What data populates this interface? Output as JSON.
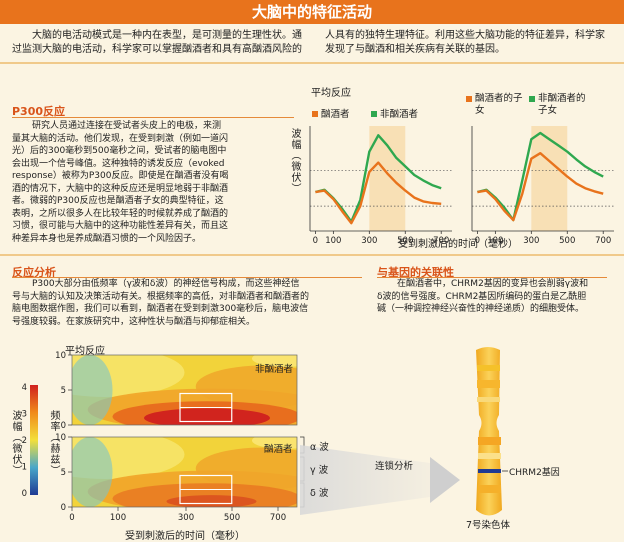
{
  "title": "大脑中的特征活动",
  "intro": {
    "left_lines": [
      "大脑的电活动模式是一种内在表型，是可测量的生理性状。通",
      "过监测大脑的电活动，科学家可以掌握酗酒者和具有高酗酒风险的"
    ],
    "right_lines": [
      "人具有的独特生理特征。利用这些大脑功能的特征差异，科学家",
      "发现了与酗酒和相关疾病有关联的基因。"
    ]
  },
  "p300": {
    "title": "P300反应",
    "lines": [
      "研究人员通过连接在受试者头皮上的电极，来测",
      "量其大脑的活动。他们发现，在受到刺激（例如一道闪",
      "光）后的300毫秒到500毫秒之间，受试者的脑电图中",
      "会出现一个信号峰值。这种独特的诱发反应（evoked",
      "response）被称为P300反应。即使是在酗酒者没有喝",
      "酒的情况下，大脑中的这种反应还是明显地弱于非酗酒",
      "者。微弱的P300反应也是酗酒者子女的典型特征，这",
      "表明，之所以很多人在比较年轻的时候就养成了酗酒的",
      "习惯，很可能与大脑中的这种功能性差异有关，而且这",
      "种差异本身也是养成酗酒习惯的一个风险因子。"
    ]
  },
  "avg_chart": {
    "title": "平均反应",
    "ylabel": "波幅（微伏）",
    "xlabel": "受到刺激后的时间（毫秒）",
    "legend_left": [
      "酗酒者",
      "非酗酒者"
    ],
    "legend_right": [
      "酗酒者的子女",
      "非酗酒者的子女"
    ],
    "colors": {
      "alcoholic": "#e8731c",
      "non_alcoholic": "#2fa84f",
      "window": "#f7d9a6"
    },
    "x_ticks": [
      "0",
      "100",
      "300",
      "500",
      "700"
    ]
  },
  "chart_data": [
    {
      "type": "line",
      "title": "平均反应",
      "xlabel": "受到刺激后的时间（毫秒）",
      "ylabel": "波幅（微伏）",
      "x": [
        0,
        50,
        100,
        150,
        200,
        250,
        300,
        350,
        400,
        450,
        500,
        550,
        600,
        650,
        700
      ],
      "xlim": [
        -30,
        760
      ],
      "series": [
        {
          "name": "非酗酒者",
          "values": [
            0,
            0.3,
            -0.8,
            -2.2,
            -3.8,
            -1.0,
            5.2,
            7.3,
            6.0,
            4.4,
            3.3,
            2.2,
            1.5,
            0.9,
            0.5
          ]
        },
        {
          "name": "酗酒者",
          "values": [
            0,
            0.2,
            -0.9,
            -2.5,
            -4.0,
            -1.8,
            2.6,
            3.8,
            2.4,
            1.2,
            0.2,
            -0.7,
            -1.2,
            -1.4,
            -1.5
          ]
        }
      ],
      "highlight_range": [
        300,
        500
      ]
    },
    {
      "type": "line",
      "xlabel": "受到刺激后的时间（毫秒）",
      "x": [
        0,
        50,
        100,
        150,
        200,
        250,
        300,
        350,
        400,
        450,
        500,
        550,
        600,
        650,
        700
      ],
      "xlim": [
        -30,
        760
      ],
      "series": [
        {
          "name": "非酗酒者的子女",
          "values": [
            0,
            0.3,
            -0.7,
            -2.0,
            -3.6,
            1.5,
            6.8,
            7.6,
            6.8,
            6.0,
            5.2,
            4.2,
            3.3,
            2.6,
            2.0
          ]
        },
        {
          "name": "酗酒者的子女",
          "values": [
            0,
            0.2,
            -0.9,
            -2.4,
            -3.6,
            -0.2,
            4.3,
            5.0,
            4.0,
            3.0,
            2.0,
            1.1,
            0.5,
            0.1,
            -0.2
          ]
        }
      ],
      "highlight_range": [
        300,
        500
      ]
    },
    {
      "type": "heatmap",
      "title": "平均反应",
      "xlabel": "受到刺激后的时间（毫秒）",
      "ylabel": "频率（赫兹）",
      "colorbar_label": "波幅（微伏）",
      "colorbar_ticks": [
        "4",
        "3",
        "2",
        "1",
        "0"
      ],
      "panels": [
        "非酗酒者",
        "酗酒者"
      ],
      "y_ticks": [
        "10",
        "5",
        "0"
      ],
      "x_ticks": [
        "0",
        "100",
        "300",
        "500",
        "700"
      ],
      "band_labels": [
        "α 波",
        "γ 波",
        "δ 波"
      ]
    }
  ],
  "analysis": {
    "title": "反应分析",
    "lines": [
      "P300大部分由低频率（γ波和δ波）的神经信号构成，而这些神经信",
      "号与大脑的认知及决策活动有关。根据频率的高低，对非酗酒者和酗酒者的",
      "脑电图数据作图，我们可以看到，酗酒者在受到刺激300毫秒后，脑电波信",
      "号强度较弱。在家族研究中，这种性状与酗酒与抑郁症相关。"
    ]
  },
  "gene": {
    "title": "与基因的关联性",
    "lines": [
      "在酗酒者中，CHRM2基因的变异也会削弱γ波和",
      "δ波的信号强度。CHRM2基因所编码的蛋白是乙酰胆",
      "碱（一种调控神经兴奋性的神经递质）的细胞受体。"
    ],
    "gene_label": "CHRM2基因",
    "chromosome_label": "7号染色体",
    "linkage_label": "连锁分析"
  }
}
